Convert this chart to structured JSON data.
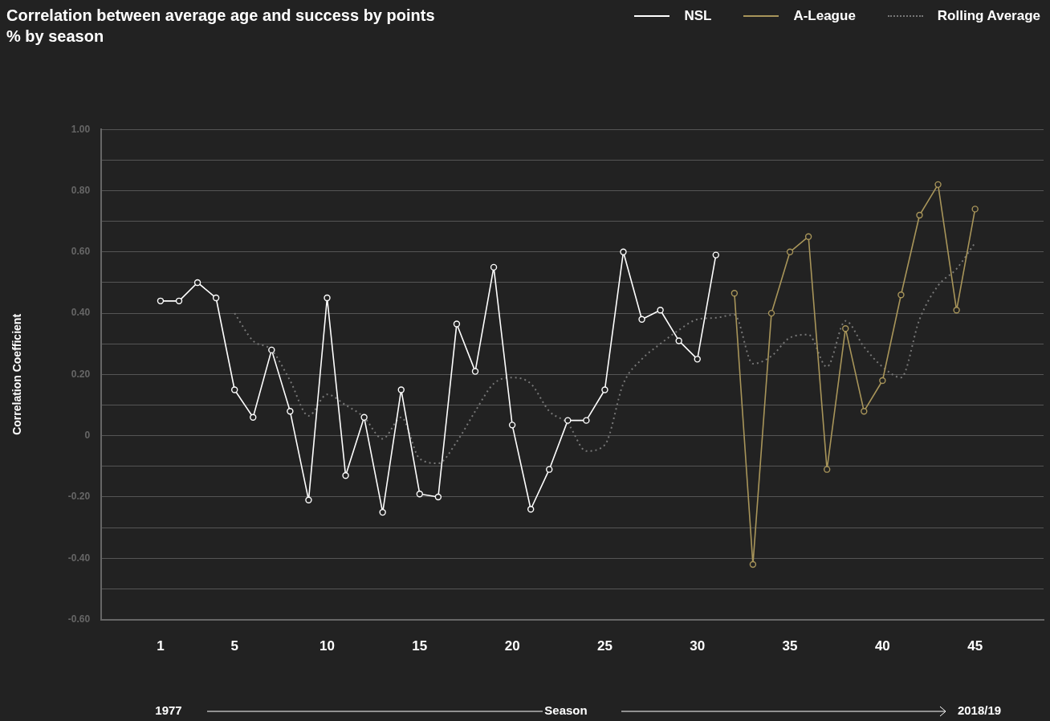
{
  "chart_data": {
    "type": "line",
    "title": "Correlation between average age and success by points % by season",
    "xlabel": "Season",
    "ylabel": "Correlation Coefficient",
    "annotations": [
      "1977",
      "2018/19"
    ],
    "xlim": [
      -2.2,
      48.7
    ],
    "xticks": [
      1,
      5,
      10,
      15,
      20,
      25,
      30,
      35,
      40,
      45
    ],
    "ylim": [
      -0.6,
      1.0
    ],
    "yticks": [
      {
        "value": -0.6,
        "label": "-0.60"
      },
      {
        "value": -0.5,
        "label": null
      },
      {
        "value": -0.4,
        "label": "-0.40"
      },
      {
        "value": -0.3,
        "label": null
      },
      {
        "value": -0.2,
        "label": "-0.20"
      },
      {
        "value": -0.1,
        "label": null
      },
      0,
      {
        "value": 0.1,
        "label": null
      },
      {
        "value": 0.2,
        "label": "0.20"
      },
      {
        "value": 0.3,
        "label": null
      },
      {
        "value": 0.4,
        "label": "0.40"
      },
      {
        "value": 0.5,
        "label": null
      },
      {
        "value": 0.6,
        "label": "0.60"
      },
      {
        "value": 0.7,
        "label": null
      },
      {
        "value": 0.8,
        "label": "0.80"
      },
      {
        "value": 0.9,
        "label": null
      },
      {
        "value": 1.0,
        "label": "1.00"
      }
    ],
    "grid": "y",
    "legend": "top right",
    "series": [
      {
        "name": "NSL",
        "type": "line",
        "color": "#ffffff",
        "marker": "circle",
        "line_style": "solid",
        "x": [
          1,
          2,
          3,
          4,
          5,
          6,
          7,
          8,
          9,
          10,
          11,
          12,
          13,
          14,
          15,
          16,
          17,
          18,
          19,
          20,
          21,
          22,
          23,
          24,
          25,
          26,
          27,
          28,
          29,
          30,
          31
        ],
        "values": [
          0.44,
          0.44,
          0.5,
          0.45,
          0.15,
          0.06,
          0.28,
          0.08,
          -0.21,
          0.45,
          -0.13,
          0.06,
          -0.25,
          0.15,
          -0.19,
          -0.2,
          0.365,
          0.21,
          0.55,
          0.035,
          -0.24,
          -0.11,
          0.05,
          0.05,
          0.15,
          0.6,
          0.38,
          0.41,
          0.31,
          0.25,
          0.59
        ]
      },
      {
        "name": "A-League",
        "type": "line",
        "color": "#a8955a",
        "marker": "circle",
        "line_style": "solid",
        "x": [
          32,
          33,
          34,
          35,
          36,
          37,
          38,
          39,
          40,
          41,
          42,
          43,
          44,
          45
        ],
        "values": [
          0.465,
          -0.42,
          0.4,
          0.6,
          0.65,
          -0.11,
          0.35,
          0.08,
          0.18,
          0.46,
          0.72,
          0.82,
          0.41,
          0.74
        ]
      },
      {
        "name": "Rolling Average",
        "type": "line",
        "color": "#777777",
        "marker": "none",
        "line_style": "dotted",
        "x": [
          5,
          6,
          7,
          8,
          9,
          10,
          11,
          12,
          13,
          14,
          15,
          16,
          17,
          18,
          19,
          20,
          21,
          22,
          23,
          24,
          25,
          26,
          27,
          28,
          29,
          30,
          31,
          32,
          33,
          34,
          35,
          36,
          37,
          38,
          39,
          40,
          41,
          42,
          43,
          44,
          45
        ],
        "values": [
          0.4,
          0.31,
          0.28,
          0.18,
          0.065,
          0.135,
          0.1,
          0.06,
          -0.01,
          0.06,
          -0.075,
          -0.09,
          -0.02,
          0.08,
          0.17,
          0.19,
          0.17,
          0.08,
          0.04,
          -0.05,
          -0.03,
          0.17,
          0.25,
          0.3,
          0.345,
          0.38,
          0.385,
          0.395,
          0.235,
          0.26,
          0.32,
          0.33,
          0.225,
          0.375,
          0.29,
          0.225,
          0.19,
          0.38,
          0.49,
          0.545,
          0.63
        ]
      }
    ]
  }
}
